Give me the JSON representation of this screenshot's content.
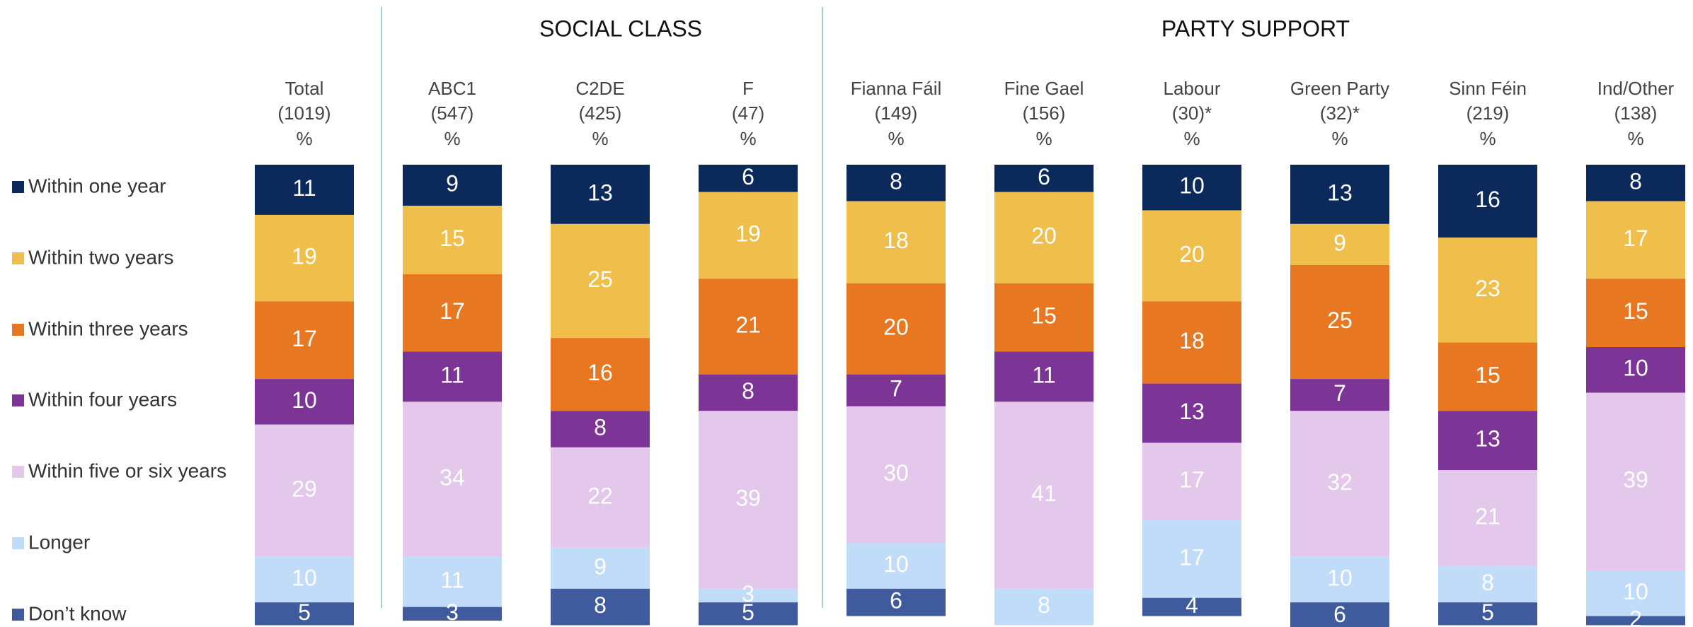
{
  "chart_data": {
    "type": "stacked_bar",
    "groups": [
      "SOCIAL CLASS",
      "PARTY SUPPORT"
    ],
    "categories": [
      "Total",
      "ABC1",
      "C2DE",
      "F",
      "Fianna Fáil",
      "Fine Gael",
      "Labour",
      "Green Party",
      "Sinn Féin",
      "Ind/Other"
    ],
    "bases": [
      "(1019)",
      "(547)",
      "(425)",
      "(47)",
      "(149)",
      "(156)",
      "(30)*",
      "(32)*",
      "(219)",
      "(138)"
    ],
    "unit": "%",
    "series": [
      {
        "name": "Within one year",
        "color": "#0b2a5b",
        "values": [
          11,
          9,
          13,
          6,
          8,
          6,
          10,
          13,
          16,
          8
        ]
      },
      {
        "name": "Within two years",
        "color": "#f0be4b",
        "values": [
          19,
          15,
          25,
          19,
          18,
          20,
          20,
          9,
          23,
          17
        ]
      },
      {
        "name": "Within three years",
        "color": "#e87722",
        "values": [
          17,
          17,
          16,
          21,
          20,
          15,
          18,
          25,
          15,
          15
        ]
      },
      {
        "name": "Within four years",
        "color": "#7c3496",
        "values": [
          10,
          11,
          8,
          8,
          7,
          11,
          13,
          7,
          13,
          10
        ]
      },
      {
        "name": "Within five or six years",
        "color": "#e3c8ec",
        "values": [
          29,
          34,
          22,
          39,
          30,
          41,
          17,
          32,
          21,
          39
        ]
      },
      {
        "name": "Longer",
        "color": "#c0dcf9",
        "values": [
          10,
          11,
          9,
          3,
          10,
          8,
          17,
          10,
          8,
          10
        ]
      },
      {
        "name": "Don’t know",
        "color": "#3f5b9d",
        "values": [
          5,
          3,
          8,
          5,
          6,
          null,
          4,
          6,
          5,
          2
        ]
      }
    ]
  }
}
